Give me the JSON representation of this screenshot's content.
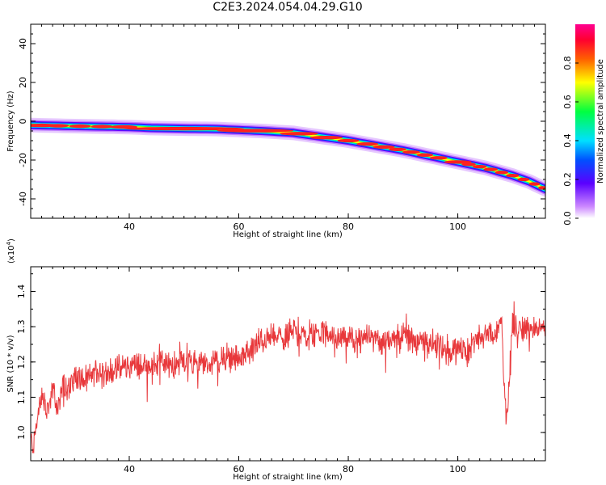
{
  "chart_data": [
    {
      "type": "heatmap",
      "title": "C2E3.2024.054.04.29.G10",
      "xlabel": "Height of straight line (km)",
      "ylabel": "Frequency (Hz)",
      "xlim": [
        22,
        116
      ],
      "ylim": [
        -50,
        50
      ],
      "xticks": [
        40,
        60,
        80,
        100
      ],
      "yticks": [
        40,
        20,
        0,
        -20,
        -40
      ],
      "colorbar": {
        "label": "Normalized spectral amplitude",
        "range": [
          0,
          1
        ],
        "ticks": [
          "0.0",
          "0.2",
          "0.4",
          "0.6",
          "0.8"
        ],
        "colormap": "rainbow (white/purple to blue, cyan, green, yellow, red, magenta)"
      },
      "ridge": {
        "description": "Frequency trace of maximum normalized spectral amplitude vs height",
        "x": [
          22,
          30,
          40,
          44,
          50,
          56,
          60,
          64,
          70,
          75,
          80,
          85,
          90,
          95,
          100,
          105,
          110,
          113,
          116
        ],
        "y": [
          -2,
          -2.5,
          -3,
          -3.5,
          -3.8,
          -4,
          -4.5,
          -5,
          -6,
          -8,
          -10,
          -12.5,
          -15,
          -18,
          -21,
          -24,
          -28,
          -31,
          -35
        ]
      }
    },
    {
      "type": "line",
      "xlabel": "Height of straight line (km)",
      "ylabel": "SNR (10 * v/v)",
      "y_multiplier_label": "(x10",
      "y_multiplier_exponent": "4",
      "y_multiplier_close": ")",
      "xlim": [
        22,
        116
      ],
      "ylim": [
        0.92,
        1.47
      ],
      "xticks": [
        40,
        60,
        80,
        100
      ],
      "yticks": [
        "1.0",
        "1.1",
        "1.2",
        "1.3",
        "1.4"
      ],
      "color": "#e8383b",
      "series": [
        {
          "x": [
            22,
            22.5,
            23,
            24,
            25,
            26,
            27,
            28,
            29,
            30,
            32,
            34,
            36,
            38,
            40,
            42,
            44,
            46,
            48,
            50,
            52,
            54,
            56,
            58,
            60,
            62,
            64,
            66,
            68,
            70,
            72,
            74,
            76,
            78,
            80,
            82,
            84,
            86,
            88,
            90,
            92,
            94,
            96,
            98,
            100,
            102,
            104,
            106,
            107,
            108,
            108.5,
            109,
            110,
            112,
            114,
            116
          ],
          "y": [
            0.98,
            0.96,
            1.02,
            1.1,
            1.06,
            1.12,
            1.07,
            1.14,
            1.12,
            1.16,
            1.15,
            1.17,
            1.17,
            1.18,
            1.19,
            1.19,
            1.19,
            1.2,
            1.19,
            1.2,
            1.2,
            1.19,
            1.2,
            1.21,
            1.21,
            1.23,
            1.26,
            1.27,
            1.27,
            1.29,
            1.28,
            1.28,
            1.28,
            1.27,
            1.27,
            1.26,
            1.27,
            1.26,
            1.27,
            1.28,
            1.26,
            1.26,
            1.25,
            1.24,
            1.23,
            1.24,
            1.27,
            1.28,
            1.27,
            1.33,
            1.12,
            1.05,
            1.31,
            1.29,
            1.29,
            1.3
          ]
        }
      ]
    }
  ]
}
